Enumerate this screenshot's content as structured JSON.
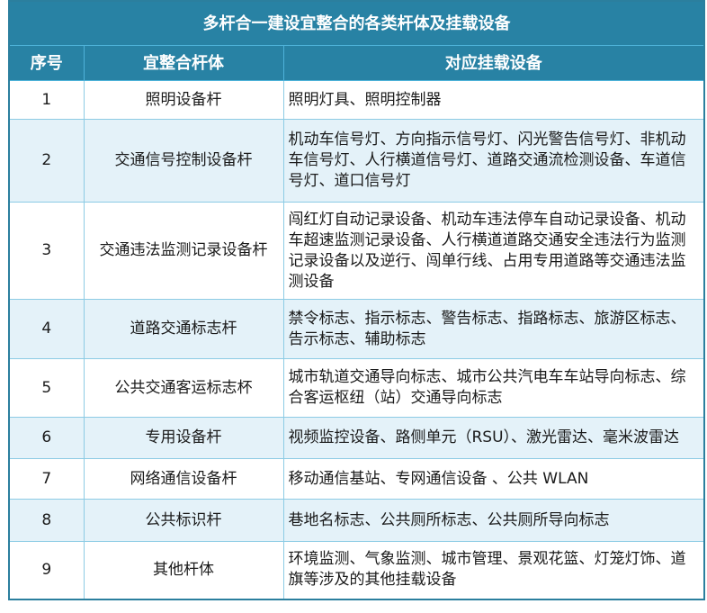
{
  "title": "多杆合一建设宜整合的各类杆体及挂载设备",
  "headers": [
    "序号",
    "宜整合杆体",
    "对应挂载设备"
  ],
  "rows": [
    {
      "no": "1",
      "pole": "照明设备杆",
      "equipment": "照明灯具、照明控制器"
    },
    {
      "no": "2",
      "pole": "交通信号控制设备杆",
      "equipment": "机动车信号灯、方向指示信号灯、闪光警告信号灯、非机动车信号灯、人行横道信号灯、道路交通流检测设备、车道信号灯、道口信号灯"
    },
    {
      "no": "3",
      "pole": "交通违法监测记录设备杆",
      "equipment": "闯红灯自动记录设备、机动车违法停车自动记录设备、机动车超速监测记录设备、人行横道道路交通安全违法行为监测记录设备以及逆行、闯单行线、占用专用道路等交通违法监测设备"
    },
    {
      "no": "4",
      "pole": "道路交通标志杆",
      "equipment": "禁令标志、指示标志、警告标志、指路标志、旅游区标志、告示标志、辅助标志"
    },
    {
      "no": "5",
      "pole": "公共交通客运标志杯",
      "equipment": "城市轨道交通导向标志、城市公共汽电车车站导向标志、综合客运枢纽（站）交通导向标志"
    },
    {
      "no": "6",
      "pole": "专用设备杆",
      "equipment": "视频监控设备、路侧单元（RSU）、激光雷达、毫米波雷达"
    },
    {
      "no": "7",
      "pole": "网络通信设备杆",
      "equipment": "移动通信基站、专网通信设备 、公共 WLAN"
    },
    {
      "no": "8",
      "pole": "公共标识杆",
      "equipment": "巷地名标志、公共厕所标志、公共厕所导向标志"
    },
    {
      "no": "9",
      "pole": "其他杆体",
      "equipment": "环境监测、气象监测、城市管理、景观花篮、灯笼灯饰、道旗等涉及的其他挂载设备"
    }
  ],
  "colors": {
    "header_bg": "#2882a4",
    "alt_row_bg": "#e4f2f9",
    "border": "#8ccbe4"
  }
}
